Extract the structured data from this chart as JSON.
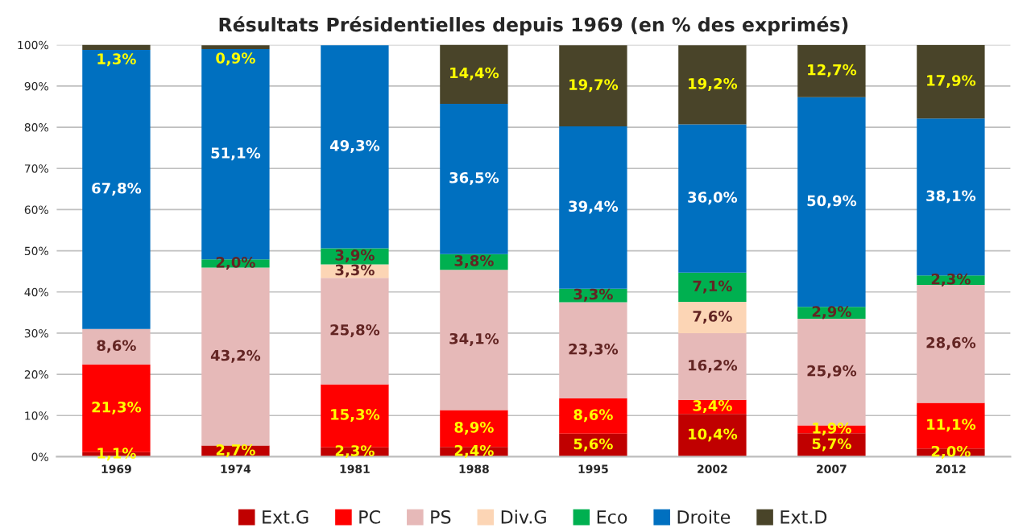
{
  "chart_data": {
    "type": "bar",
    "title": "Résultats Présidentielles depuis 1969 (en % des exprimés)",
    "categories": [
      "1969",
      "1974",
      "1981",
      "1988",
      "1995",
      "2002",
      "2007",
      "2012"
    ],
    "stacked": true,
    "series": [
      {
        "name": "Ext.G",
        "color": "#c00000",
        "values": [
          1.1,
          2.7,
          2.3,
          2.4,
          5.6,
          10.4,
          5.7,
          2.0
        ],
        "value_labels": [
          "1,1%",
          "2,7%",
          "2,3%",
          "2,4%",
          "5,6%",
          "10,4%",
          "5,7%",
          "2,0%"
        ]
      },
      {
        "name": "PC",
        "color": "#ff0000",
        "values": [
          21.3,
          null,
          15.3,
          8.9,
          8.6,
          3.4,
          1.9,
          11.1
        ],
        "value_labels": [
          "21,3%",
          null,
          "15,3%",
          "8,9%",
          "8,6%",
          "3,4%",
          "1,9%",
          "11,1%"
        ]
      },
      {
        "name": "PS",
        "color": "#e6b9b8",
        "values": [
          8.6,
          43.2,
          25.8,
          34.1,
          23.3,
          16.2,
          25.9,
          28.6
        ],
        "value_labels": [
          "8,6%",
          "43,2%",
          "25,8%",
          "34,1%",
          "23,3%",
          "16,2%",
          "25,9%",
          "28,6%"
        ]
      },
      {
        "name": "Div.G",
        "color": "#fcd5b5",
        "values": [
          null,
          null,
          3.3,
          null,
          null,
          7.6,
          null,
          null
        ],
        "value_labels": [
          null,
          null,
          "3,3%",
          null,
          null,
          "7,6%",
          null,
          null
        ]
      },
      {
        "name": "Eco",
        "color": "#00b050",
        "values": [
          null,
          2.0,
          3.9,
          3.8,
          3.3,
          7.1,
          2.9,
          2.3
        ],
        "value_labels": [
          null,
          "2,0%",
          "3,9%",
          "3,8%",
          "3,3%",
          "7,1%",
          "2,9%",
          "2,3%"
        ]
      },
      {
        "name": "Droite",
        "color": "#0070c0",
        "values": [
          67.8,
          51.1,
          49.3,
          36.5,
          39.4,
          36.0,
          50.9,
          38.1
        ],
        "value_labels": [
          "67,8%",
          "51,1%",
          "49,3%",
          "36,5%",
          "39,4%",
          "36,0%",
          "50,9%",
          "38,1%"
        ]
      },
      {
        "name": "Ext.D",
        "color": "#494429",
        "values": [
          1.3,
          0.9,
          null,
          14.4,
          19.7,
          19.2,
          12.7,
          17.9
        ],
        "value_labels": [
          "1,3%",
          "0,9%",
          null,
          "14,4%",
          "19,7%",
          "19,2%",
          "12,7%",
          "17,9%"
        ]
      }
    ],
    "ylim": [
      0,
      100
    ],
    "yticks": [
      {
        "value": 0,
        "label": "0%"
      },
      {
        "value": 10,
        "label": "10%"
      },
      {
        "value": 20,
        "label": "20%"
      },
      {
        "value": 30,
        "label": "30%"
      },
      {
        "value": 40,
        "label": "40%"
      },
      {
        "value": 50,
        "label": "50%"
      },
      {
        "value": 60,
        "label": "60%"
      },
      {
        "value": 70,
        "label": "70%"
      },
      {
        "value": 80,
        "label": "80%"
      },
      {
        "value": 90,
        "label": "90%"
      },
      {
        "value": 100,
        "label": "100%"
      }
    ],
    "grid": "y",
    "legend": "bottom"
  }
}
